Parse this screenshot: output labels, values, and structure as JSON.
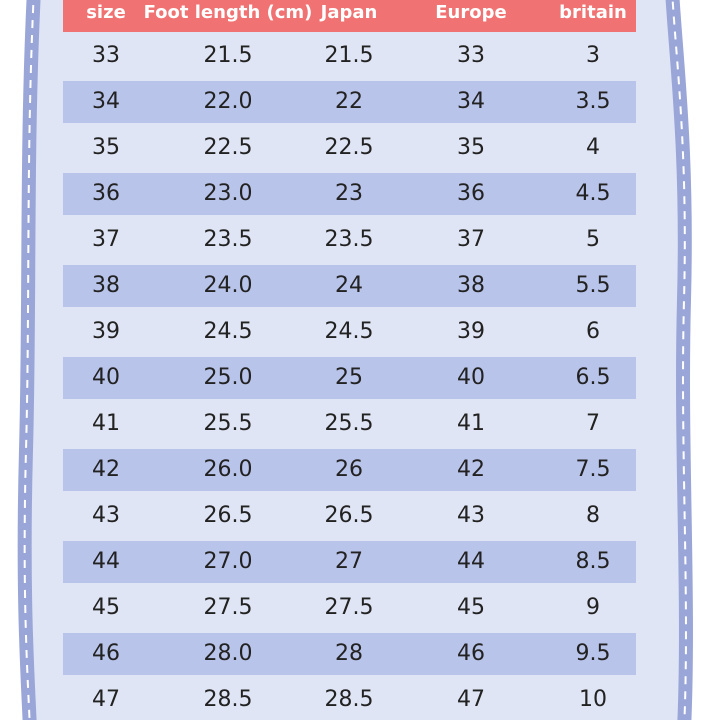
{
  "table": {
    "header": [
      "size",
      "Foot length (cm)",
      "Japan",
      "Europe",
      "britain"
    ],
    "rows": [
      [
        "33",
        "21.5",
        "21.5",
        "33",
        "3"
      ],
      [
        "34",
        "22.0",
        "22",
        "34",
        "3.5"
      ],
      [
        "35",
        "22.5",
        "22.5",
        "35",
        "4"
      ],
      [
        "36",
        "23.0",
        "23",
        "36",
        "4.5"
      ],
      [
        "37",
        "23.5",
        "23.5",
        "37",
        "5"
      ],
      [
        "38",
        "24.0",
        "24",
        "38",
        "5.5"
      ],
      [
        "39",
        "24.5",
        "24.5",
        "39",
        "6"
      ],
      [
        "40",
        "25.0",
        "25",
        "40",
        "6.5"
      ],
      [
        "41",
        "25.5",
        "25.5",
        "41",
        "7"
      ],
      [
        "42",
        "26.0",
        "26",
        "42",
        "7.5"
      ],
      [
        "43",
        "26.5",
        "26.5",
        "43",
        "8"
      ],
      [
        "44",
        "27.0",
        "27",
        "44",
        "8.5"
      ],
      [
        "45",
        "27.5",
        "27.5",
        "45",
        "9"
      ],
      [
        "46",
        "28.0",
        "28",
        "46",
        "9.5"
      ],
      [
        "47",
        "28.5",
        "28.5",
        "47",
        "10"
      ]
    ]
  }
}
